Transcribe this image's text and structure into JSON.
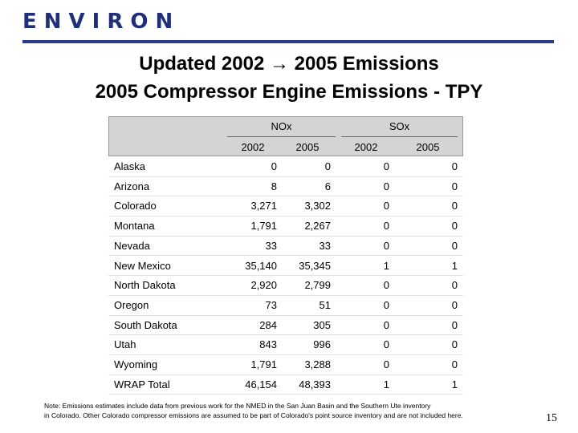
{
  "header": {
    "logo": "ENVIRON",
    "title": "Updated 2002 → 2005 Emissions",
    "subtitle": "2005 Compressor Engine Emissions - TPY"
  },
  "table": {
    "groups": [
      "NOx",
      "SOx"
    ],
    "years": [
      "2002",
      "2005",
      "2002",
      "2005"
    ],
    "rows": [
      [
        "Alaska",
        "0",
        "0",
        "0",
        "0"
      ],
      [
        "Arizona",
        "8",
        "6",
        "0",
        "0"
      ],
      [
        "Colorado",
        "3,271",
        "3,302",
        "0",
        "0"
      ],
      [
        "Montana",
        "1,791",
        "2,267",
        "0",
        "0"
      ],
      [
        "Nevada",
        "33",
        "33",
        "0",
        "0"
      ],
      [
        "New Mexico",
        "35,140",
        "35,345",
        "1",
        "1"
      ],
      [
        "North Dakota",
        "2,920",
        "2,799",
        "0",
        "0"
      ],
      [
        "Oregon",
        "73",
        "51",
        "0",
        "0"
      ],
      [
        "South Dakota",
        "284",
        "305",
        "0",
        "0"
      ],
      [
        "Utah",
        "843",
        "996",
        "0",
        "0"
      ],
      [
        "Wyoming",
        "1,791",
        "3,288",
        "0",
        "0"
      ],
      [
        "WRAP Total",
        "46,154",
        "48,393",
        "1",
        "1"
      ]
    ]
  },
  "note": [
    "Note:  Emissions estimates include data from previous work for the NMED in the San Juan Basin and the Southern Ute inventory",
    "in Colorado.  Other Colorado compressor emissions are assumed to be part of Colorado's point source inventory and are not included here."
  ],
  "page_number": "15"
}
